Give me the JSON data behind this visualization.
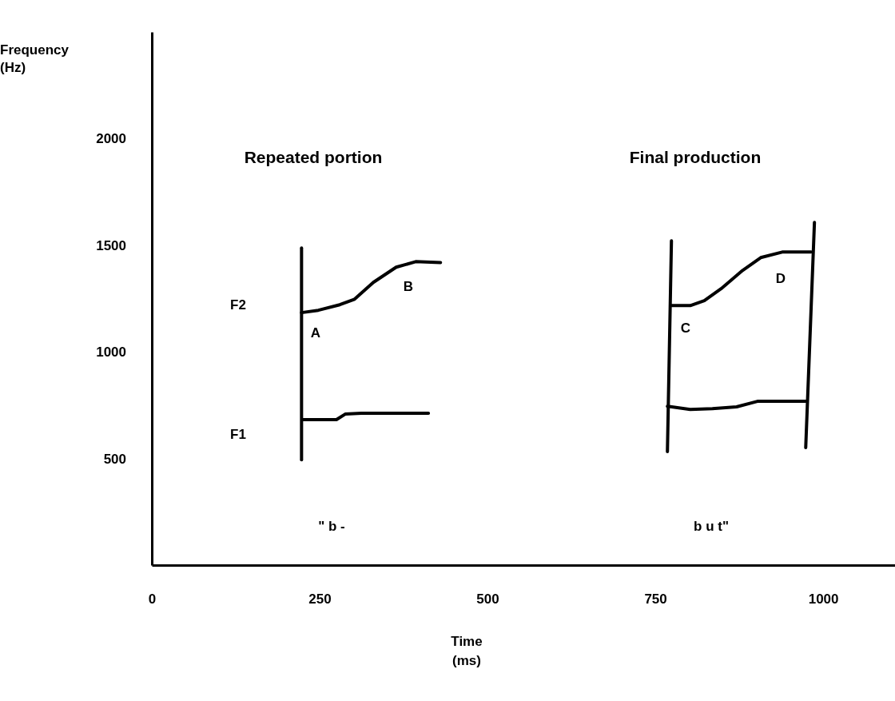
{
  "chart_data": {
    "type": "line",
    "xlabel": "Time\n(ms)",
    "ylabel": "Frequency\n(Hz)",
    "xlim": [
      0,
      1107
    ],
    "ylim": [
      0,
      2500
    ],
    "xticks": [
      0,
      250,
      500,
      750,
      1000
    ],
    "yticks": [
      500,
      1000,
      1500,
      2000
    ],
    "grid": false,
    "marker": "none",
    "line_style": "solid",
    "series": [
      {
        "color": "#000000",
        "x": [
          223,
          223
        ],
        "values": [
          494,
          1487
        ]
      },
      {
        "color": "#000000",
        "x": [
          223,
          248,
          280,
          302,
          330,
          364,
          393,
          430
        ],
        "values": [
          1184,
          1195,
          1221,
          1247,
          1326,
          1397,
          1423,
          1419
        ]
      },
      {
        "color": "#000000",
        "x": [
          225,
          275,
          288,
          312,
          412
        ],
        "values": [
          682,
          682,
          708,
          712,
          712
        ]
      },
      {
        "color": "#000000",
        "x": [
          768,
          774
        ],
        "values": [
          532,
          1521
        ]
      },
      {
        "color": "#000000",
        "x": [
          974,
          987
        ],
        "values": [
          551,
          1607
        ]
      },
      {
        "color": "#000000",
        "x": [
          773,
          802,
          823,
          848,
          880,
          907,
          939,
          982
        ],
        "values": [
          1217,
          1217,
          1240,
          1296,
          1382,
          1442,
          1468,
          1468
        ]
      },
      {
        "color": "#000000",
        "x": [
          768,
          802,
          835,
          871,
          902,
          974
        ],
        "values": [
          745,
          730,
          734,
          742,
          768,
          768
        ]
      }
    ],
    "annotations": [
      "Repeated portion",
      "Final production",
      "F2",
      "F1",
      "A",
      "B",
      "C",
      "D",
      "\" b -",
      "b u t\""
    ]
  }
}
